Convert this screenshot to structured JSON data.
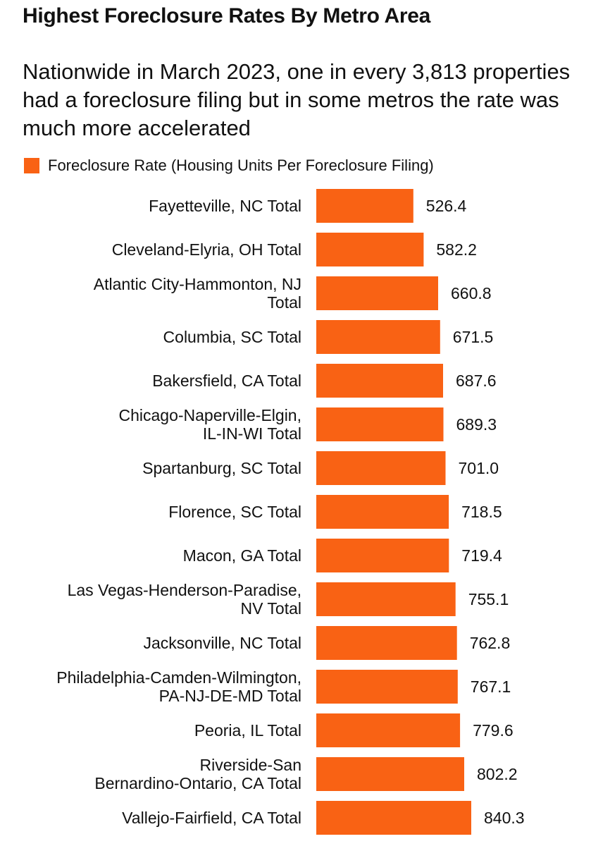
{
  "title": "Highest Foreclosure Rates By Metro Area",
  "subtitle": "Nationwide in March 2023, one in every 3,813 properties had a foreclosure filing but in some metros the rate was much more accelerated",
  "colors": {
    "bar": "#f96214",
    "text": "#111111",
    "background": "#ffffff"
  },
  "chart_data": {
    "type": "bar",
    "orientation": "horizontal",
    "legend": {
      "position": "top-left",
      "entries": [
        "Foreclosure Rate (Housing Units Per Foreclosure Filing)"
      ]
    },
    "categories": [
      [
        "Fayetteville, NC Total"
      ],
      [
        "Cleveland-Elyria, OH Total"
      ],
      [
        "Atlantic City-Hammonton, NJ",
        "Total"
      ],
      [
        "Columbia, SC Total"
      ],
      [
        "Bakersfield, CA Total"
      ],
      [
        "Chicago-Naperville-Elgin,",
        "IL-IN-WI Total"
      ],
      [
        "Spartanburg, SC Total"
      ],
      [
        "Florence, SC Total"
      ],
      [
        "Macon, GA Total"
      ],
      [
        "Las Vegas-Henderson-Paradise,",
        "NV Total"
      ],
      [
        "Jacksonville, NC Total"
      ],
      [
        "Philadelphia-Camden-Wilmington,",
        "PA-NJ-DE-MD Total"
      ],
      [
        "Peoria, IL Total"
      ],
      [
        "Riverside-San",
        "Bernardino-Ontario, CA Total"
      ],
      [
        "Vallejo-Fairfield, CA Total"
      ]
    ],
    "values": [
      526.4,
      582.2,
      660.8,
      671.5,
      687.6,
      689.3,
      701.0,
      718.5,
      719.4,
      755.1,
      762.8,
      767.1,
      779.6,
      802.2,
      840.3
    ],
    "value_labels": [
      "526.4",
      "582.2",
      "660.8",
      "671.5",
      "687.6",
      "689.3",
      "701.0",
      "718.5",
      "719.4",
      "755.1",
      "762.8",
      "767.1",
      "779.6",
      "802.2",
      "840.3"
    ],
    "series": [
      {
        "name": "Foreclosure Rate (Housing Units Per Foreclosure Filing)",
        "values": [
          526.4,
          582.2,
          660.8,
          671.5,
          687.6,
          689.3,
          701.0,
          718.5,
          719.4,
          755.1,
          762.8,
          767.1,
          779.6,
          802.2,
          840.3
        ]
      }
    ],
    "xlim": [
      0,
      840.3
    ],
    "grid": false,
    "axes_visible": false
  }
}
